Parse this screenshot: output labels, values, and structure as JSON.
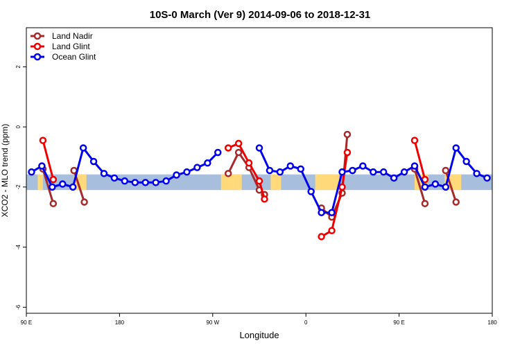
{
  "chart_data": {
    "type": "line",
    "title": "10S-0 March (Ver 9)   2014-09-06 to 2018-12-31",
    "xlabel": "Longitude",
    "ylabel": "XCO2 - MLO trend (ppm)",
    "x_ticks": [
      {
        "value": 90,
        "label": "90 E"
      },
      {
        "value": 180,
        "label": "180"
      },
      {
        "value": 270,
        "label": "90 W"
      },
      {
        "value": 360,
        "label": "0"
      },
      {
        "value": 450,
        "label": "90 E"
      },
      {
        "value": 540,
        "label": "180"
      }
    ],
    "y_ticks": [
      {
        "value": 2,
        "label": "2"
      },
      {
        "value": 0,
        "label": "0"
      },
      {
        "value": -2,
        "label": "-2"
      },
      {
        "value": -4,
        "label": "-4"
      },
      {
        "value": -6,
        "label": "-6"
      }
    ],
    "xlim": [
      90,
      540
    ],
    "ylim": [
      -6.2,
      3.3
    ],
    "grid": false,
    "legend_position": "top-left",
    "band": {
      "y_range": [
        -2.1,
        -1.58
      ],
      "ocean_color": "#a8bedd",
      "land_color": "#ffd97a"
    },
    "land_segments": [
      [
        101,
        106
      ],
      [
        136,
        148
      ],
      [
        278,
        298
      ],
      [
        326,
        336
      ],
      [
        369,
        392
      ],
      [
        465,
        478
      ],
      [
        494,
        510
      ]
    ],
    "series": [
      {
        "name": "Land Nadir",
        "color": "#a52a2a",
        "segments": [
          [
            [
              106,
              -1.4
            ],
            [
              116,
              -2.55
            ]
          ],
          [
            [
              136,
              -1.45
            ],
            [
              146,
              -2.5
            ]
          ],
          [
            [
              285,
              -1.55
            ],
            [
              295,
              -0.85
            ],
            [
              305,
              -1.35
            ],
            [
              315,
              -2.1
            ],
            [
              320,
              -2.25
            ]
          ],
          [
            [
              375,
              -2.7
            ],
            [
              385,
              -3.0
            ],
            [
              395,
              -2.2
            ],
            [
              400,
              -0.25
            ]
          ],
          [
            [
              465,
              -1.4
            ],
            [
              475,
              -2.55
            ]
          ],
          [
            [
              495,
              -1.45
            ],
            [
              505,
              -2.5
            ]
          ]
        ]
      },
      {
        "name": "Land Glint",
        "color": "#ee0000",
        "segments": [
          [
            [
              106,
              -0.45
            ],
            [
              116,
              -1.75
            ]
          ],
          [
            [
              285,
              -0.7
            ],
            [
              295,
              -0.55
            ],
            [
              305,
              -1.2
            ],
            [
              315,
              -1.8
            ],
            [
              320,
              -2.4
            ]
          ],
          [
            [
              375,
              -3.65
            ],
            [
              385,
              -3.45
            ],
            [
              395,
              -2.0
            ],
            [
              400,
              -0.85
            ]
          ],
          [
            [
              465,
              -0.45
            ],
            [
              475,
              -1.75
            ]
          ]
        ]
      },
      {
        "name": "Ocean Glint",
        "color": "#0000ee",
        "segments": [
          [
            [
              95,
              -1.5
            ],
            [
              105,
              -1.3
            ],
            [
              115,
              -2.0
            ],
            [
              125,
              -1.9
            ],
            [
              135,
              -2.0
            ],
            [
              145,
              -0.7
            ],
            [
              155,
              -1.15
            ],
            [
              165,
              -1.55
            ],
            [
              175,
              -1.7
            ],
            [
              185,
              -1.8
            ],
            [
              195,
              -1.85
            ],
            [
              205,
              -1.85
            ],
            [
              215,
              -1.85
            ],
            [
              225,
              -1.8
            ],
            [
              235,
              -1.6
            ],
            [
              245,
              -1.5
            ],
            [
              255,
              -1.35
            ],
            [
              265,
              -1.2
            ],
            [
              275,
              -0.85
            ]
          ],
          [
            [
              315,
              -0.7
            ],
            [
              325,
              -1.45
            ],
            [
              335,
              -1.5
            ],
            [
              345,
              -1.3
            ],
            [
              355,
              -1.4
            ],
            [
              365,
              -2.15
            ],
            [
              375,
              -2.85
            ],
            [
              385,
              -2.85
            ],
            [
              395,
              -1.5
            ],
            [
              405,
              -1.45
            ],
            [
              415,
              -1.3
            ],
            [
              425,
              -1.5
            ],
            [
              435,
              -1.5
            ],
            [
              445,
              -1.7
            ],
            [
              455,
              -1.5
            ],
            [
              465,
              -1.3
            ],
            [
              475,
              -2.0
            ],
            [
              485,
              -1.9
            ],
            [
              495,
              -2.0
            ],
            [
              505,
              -0.7
            ],
            [
              515,
              -1.15
            ],
            [
              525,
              -1.55
            ],
            [
              535,
              -1.7
            ]
          ]
        ]
      }
    ]
  }
}
